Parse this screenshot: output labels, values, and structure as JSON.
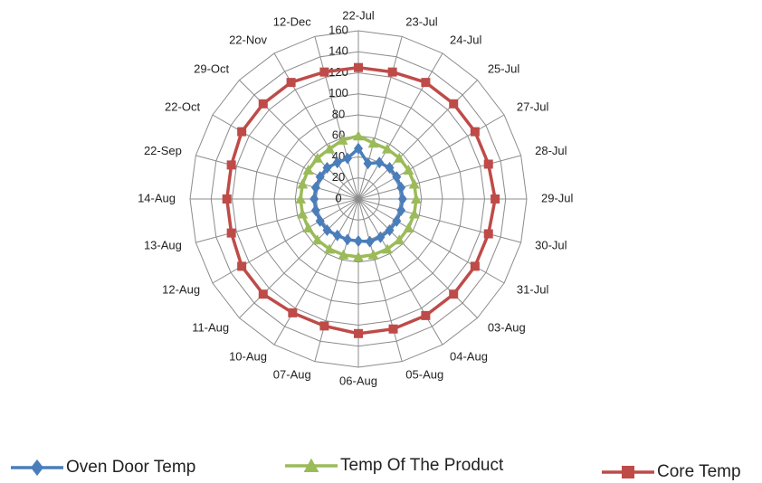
{
  "chart_data": {
    "type": "radar",
    "categories": [
      "22-Jul",
      "23-Jul",
      "24-Jul",
      "25-Jul",
      "27-Jul",
      "28-Jul",
      "29-Jul",
      "30-Jul",
      "31-Jul",
      "03-Aug",
      "04-Aug",
      "05-Aug",
      "06-Aug",
      "07-Aug",
      "10-Aug",
      "11-Aug",
      "12-Aug",
      "13-Aug",
      "14-Aug",
      "22-Sep",
      "22-Oct",
      "29-Oct",
      "22-Nov",
      "12-Dec"
    ],
    "series": [
      {
        "name": "Oven Door Temp",
        "color": "#4a7ebb",
        "marker": "diamond",
        "values": [
          48,
          35,
          40,
          42,
          42,
          42,
          42,
          42,
          42,
          42,
          42,
          42,
          40,
          40,
          40,
          42,
          42,
          42,
          42,
          42,
          42,
          42,
          40,
          40
        ]
      },
      {
        "name": "Temp Of The Product",
        "color": "#9bbb59",
        "marker": "triangle",
        "values": [
          60,
          55,
          55,
          55,
          55,
          55,
          55,
          55,
          55,
          55,
          55,
          55,
          55,
          55,
          55,
          55,
          55,
          55,
          55,
          55,
          55,
          55,
          55,
          58
        ]
      },
      {
        "name": "Core Temp",
        "color": "#be4b48",
        "marker": "square",
        "values": [
          125,
          125,
          128,
          128,
          128,
          128,
          130,
          128,
          128,
          128,
          128,
          128,
          128,
          125,
          125,
          128,
          128,
          125,
          125,
          125,
          128,
          128,
          128,
          125
        ]
      }
    ],
    "ylim": [
      0,
      160
    ],
    "yticks": [
      0,
      20,
      40,
      60,
      80,
      100,
      120,
      140,
      160
    ],
    "grid": true
  }
}
